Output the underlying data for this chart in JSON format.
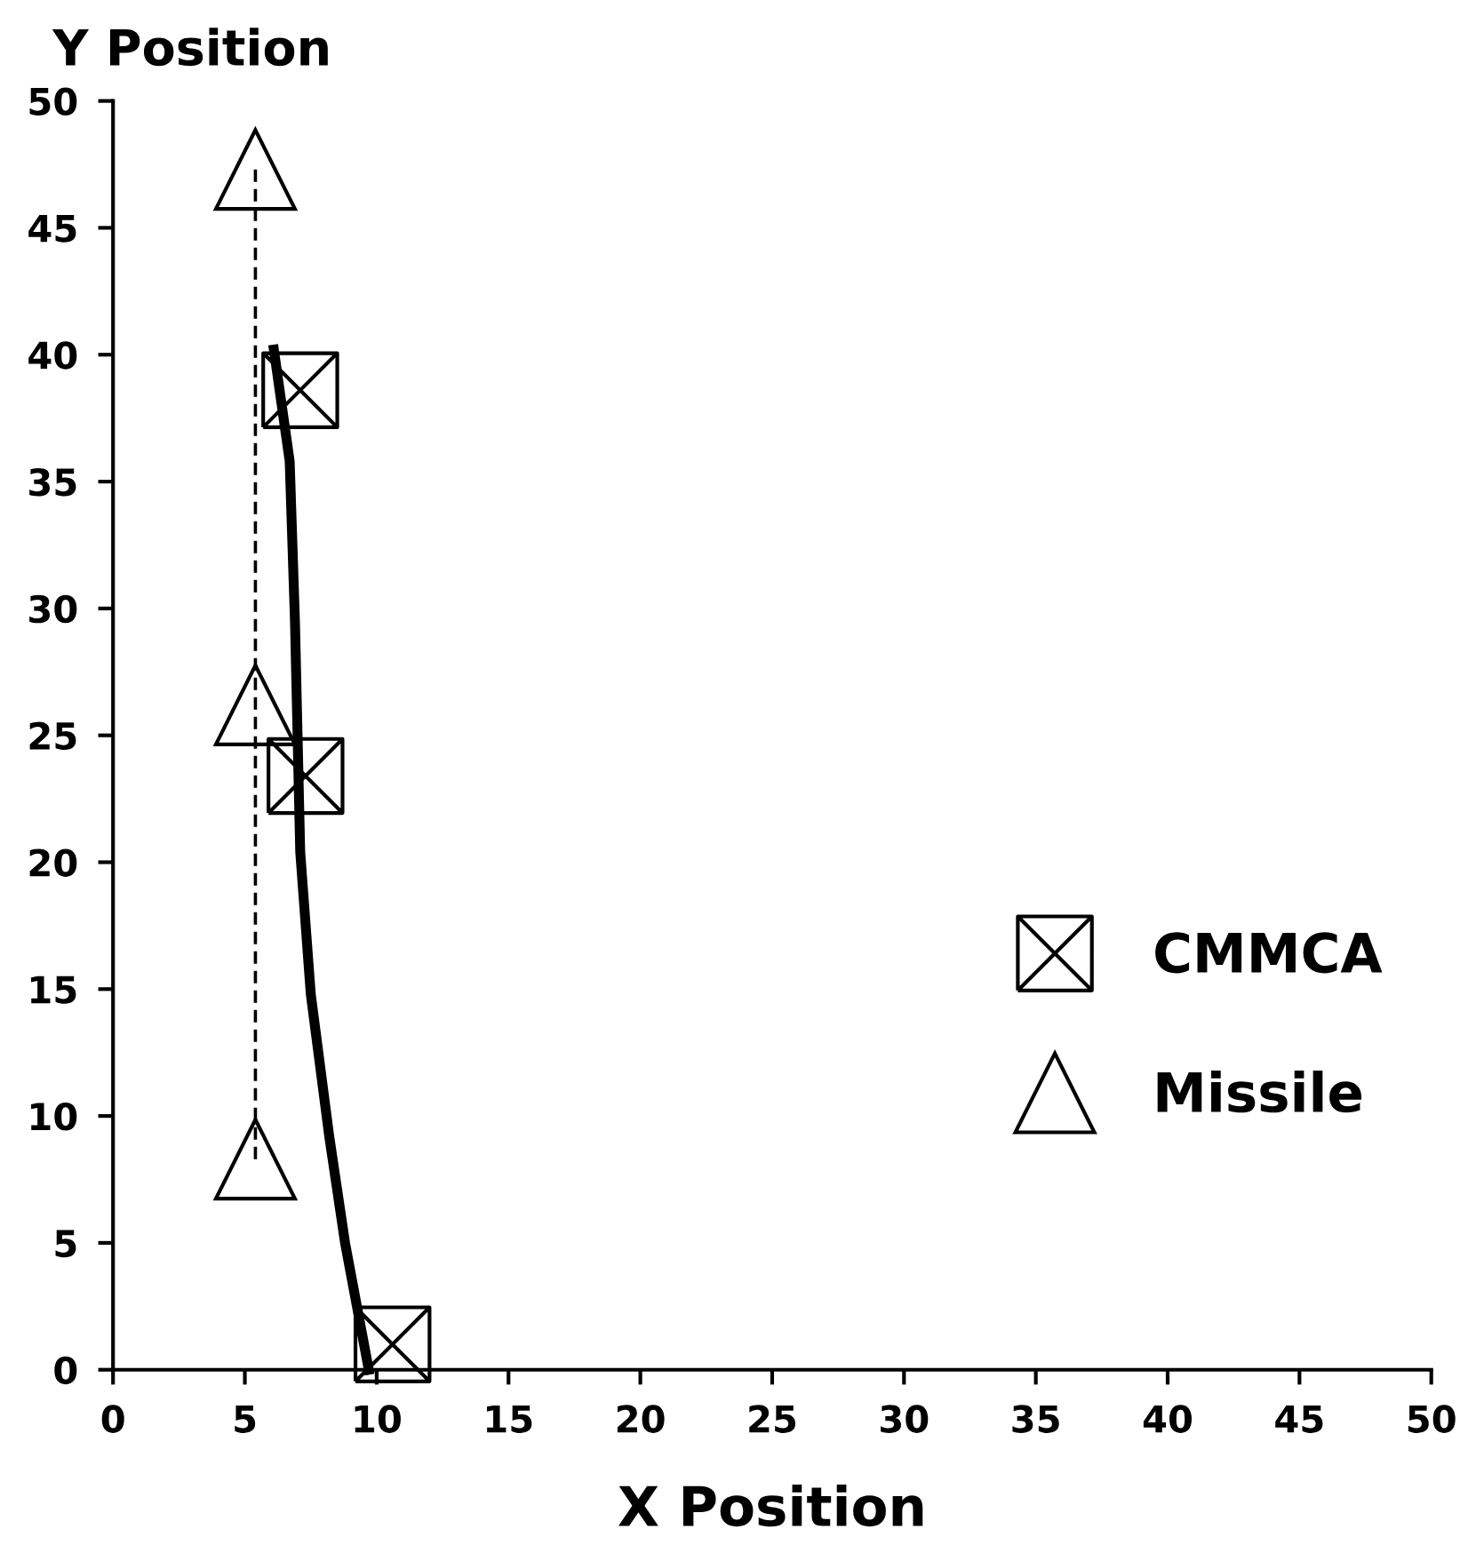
{
  "chart_data": {
    "type": "scatter",
    "xlabel": "X Position",
    "ylabel": "Y Position",
    "xlim": [
      0,
      50
    ],
    "ylim": [
      0,
      50
    ],
    "xticks": [
      0,
      5,
      10,
      15,
      20,
      25,
      30,
      35,
      40,
      45,
      50
    ],
    "yticks": [
      0,
      5,
      10,
      15,
      20,
      25,
      30,
      35,
      40,
      45,
      50
    ],
    "grid": false,
    "legend": "right",
    "series": [
      {
        "name": "CMMCA",
        "marker": "square",
        "color": "#000000",
        "x": [
          7.1,
          7.3,
          10.6
        ],
        "values": [
          38.6,
          23.4,
          1.0
        ]
      },
      {
        "name": "Missile",
        "type": "line",
        "marker": "triangle",
        "line_style": "dashed",
        "color": "#000000",
        "x": [
          5.4,
          5.4,
          5.4
        ],
        "values": [
          47.3,
          26.2,
          8.3
        ]
      },
      {
        "type": "line",
        "marker": "none",
        "line_style": "solid",
        "color": "#000000",
        "x": [
          6.1,
          6.7,
          6.9,
          7.1,
          7.5,
          8.2,
          8.8,
          9.7
        ],
        "values": [
          40.2,
          35.8,
          29.5,
          20.4,
          14.8,
          9.2,
          5.0,
          0.0
        ]
      }
    ]
  }
}
